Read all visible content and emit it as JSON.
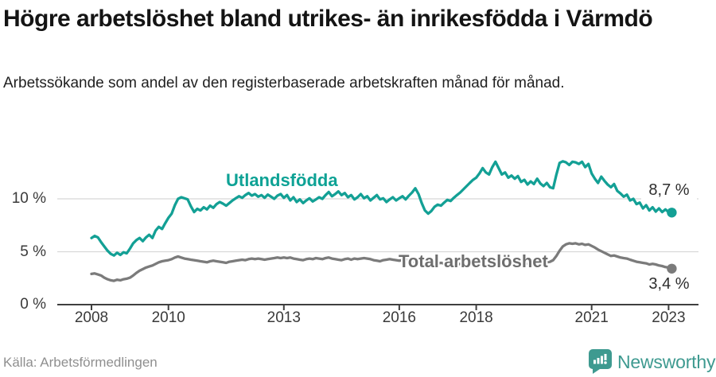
{
  "header": {
    "title": "Högre arbetslöshet bland utrikes- än inrikesfödda i Värmdö",
    "subtitle": "Arbetssökande som andel av den registerbaserade arbetskraften månad för månad."
  },
  "footer": {
    "source": "Källa: Arbetsförmedlingen",
    "brand": "Newsworthy"
  },
  "colors": {
    "teal": "#13a095",
    "gray": "#7b7b7b",
    "grid": "#d8d8d8",
    "axis": "#3f3f3f",
    "logo_teal": "#3e9a90"
  },
  "chart_data": {
    "type": "line",
    "title": "Högre arbetslöshet bland utrikes- än inrikesfödda i Värmdö",
    "subtitle": "Arbetssökande som andel av den registerbaserade arbetskraften månad för månad.",
    "x_unit": "month",
    "x_start_year": 2008,
    "x_end": "2023-02",
    "xticks": [
      2008,
      2010,
      2013,
      2016,
      2018,
      2021,
      2023
    ],
    "yticks": [
      {
        "value": 0,
        "label": "0 %"
      },
      {
        "value": 5,
        "label": "5 %"
      },
      {
        "value": 10,
        "label": "10 %"
      }
    ],
    "ylim": [
      0,
      14.5
    ],
    "grid": "horizontal-only",
    "legend_position": "inline-labels",
    "series": [
      {
        "name": "Utlandsfödda",
        "color": "#13a095",
        "end_label": "8,7 %",
        "end_value": 8.7,
        "values": [
          6.3,
          6.5,
          6.35,
          5.9,
          5.5,
          5.1,
          4.8,
          4.65,
          4.9,
          4.7,
          4.95,
          4.85,
          5.3,
          5.8,
          6.1,
          6.3,
          6.0,
          6.35,
          6.6,
          6.3,
          7.0,
          7.35,
          7.15,
          7.7,
          8.2,
          8.6,
          9.4,
          10.0,
          10.15,
          10.05,
          9.95,
          9.3,
          8.75,
          9.05,
          8.9,
          9.2,
          9.0,
          9.35,
          9.15,
          9.5,
          9.7,
          9.55,
          9.35,
          9.6,
          9.85,
          10.05,
          10.25,
          10.1,
          10.35,
          10.55,
          10.3,
          10.45,
          10.2,
          10.35,
          10.1,
          10.4,
          10.2,
          10.0,
          10.3,
          10.45,
          10.1,
          10.35,
          9.85,
          10.15,
          9.7,
          9.95,
          9.6,
          9.85,
          10.05,
          9.75,
          9.95,
          10.15,
          10.0,
          10.35,
          10.65,
          10.25,
          10.45,
          10.7,
          10.35,
          10.55,
          10.15,
          10.35,
          9.95,
          10.15,
          10.45,
          10.05,
          10.25,
          9.85,
          10.1,
          10.35,
          9.95,
          10.05,
          9.7,
          9.95,
          10.15,
          9.85,
          10.05,
          10.25,
          9.95,
          10.3,
          10.6,
          11.0,
          10.45,
          9.6,
          8.9,
          8.6,
          8.85,
          9.25,
          9.45,
          9.35,
          9.65,
          9.9,
          9.8,
          10.1,
          10.35,
          10.6,
          10.9,
          11.2,
          11.5,
          11.8,
          12.0,
          12.4,
          12.9,
          12.5,
          12.3,
          13.0,
          13.5,
          12.9,
          12.3,
          12.5,
          12.0,
          12.2,
          11.9,
          12.15,
          11.6,
          11.8,
          11.35,
          11.65,
          11.4,
          11.9,
          11.45,
          11.2,
          11.5,
          11.1,
          11.0,
          12.3,
          13.4,
          13.55,
          13.45,
          13.2,
          13.5,
          13.45,
          13.3,
          13.5,
          13.0,
          13.3,
          12.4,
          11.9,
          11.5,
          12.1,
          11.7,
          11.35,
          11.1,
          11.4,
          10.75,
          10.5,
          10.2,
          10.4,
          9.85,
          10.0,
          9.5,
          9.65,
          9.1,
          9.4,
          8.9,
          9.2,
          8.8,
          9.1,
          8.75,
          9.0,
          8.75,
          8.7
        ]
      },
      {
        "name": "Total arbetslöshet",
        "color": "#7b7b7b",
        "end_label": "3,4 %",
        "end_value": 3.4,
        "values": [
          2.9,
          2.95,
          2.85,
          2.75,
          2.55,
          2.4,
          2.3,
          2.25,
          2.35,
          2.3,
          2.4,
          2.45,
          2.55,
          2.75,
          3.0,
          3.2,
          3.35,
          3.5,
          3.6,
          3.7,
          3.85,
          4.0,
          4.1,
          4.15,
          4.2,
          4.3,
          4.45,
          4.55,
          4.45,
          4.35,
          4.3,
          4.25,
          4.2,
          4.15,
          4.1,
          4.05,
          4.0,
          4.1,
          4.15,
          4.1,
          4.05,
          4.0,
          3.95,
          4.05,
          4.1,
          4.15,
          4.2,
          4.25,
          4.2,
          4.3,
          4.35,
          4.3,
          4.35,
          4.3,
          4.25,
          4.3,
          4.35,
          4.4,
          4.45,
          4.4,
          4.45,
          4.4,
          4.45,
          4.35,
          4.3,
          4.25,
          4.2,
          4.3,
          4.35,
          4.3,
          4.4,
          4.35,
          4.3,
          4.4,
          4.45,
          4.35,
          4.3,
          4.25,
          4.2,
          4.3,
          4.35,
          4.25,
          4.35,
          4.3,
          4.35,
          4.4,
          4.35,
          4.3,
          4.2,
          4.15,
          4.1,
          4.2,
          4.25,
          4.3,
          4.25,
          4.2,
          4.15,
          4.2,
          4.25,
          4.2,
          4.1,
          4.05,
          4.0,
          4.05,
          4.0,
          3.95,
          4.0,
          3.95,
          3.9,
          3.95,
          3.9,
          3.85,
          3.8,
          3.85,
          3.8,
          3.85,
          3.8,
          3.75,
          3.8,
          3.85,
          3.8,
          3.85,
          3.8,
          3.75,
          3.7,
          3.75,
          3.7,
          3.75,
          3.8,
          3.75,
          3.8,
          3.75,
          3.8,
          3.85,
          3.8,
          3.85,
          3.9,
          3.85,
          3.9,
          3.95,
          3.9,
          3.95,
          4.0,
          4.05,
          4.2,
          4.6,
          5.1,
          5.5,
          5.7,
          5.8,
          5.75,
          5.8,
          5.7,
          5.75,
          5.65,
          5.7,
          5.55,
          5.4,
          5.2,
          5.05,
          4.9,
          4.75,
          4.6,
          4.65,
          4.55,
          4.45,
          4.4,
          4.35,
          4.25,
          4.15,
          4.05,
          4.0,
          3.95,
          3.9,
          3.8,
          3.85,
          3.8,
          3.7,
          3.65,
          3.55,
          3.5,
          3.4
        ]
      }
    ]
  }
}
